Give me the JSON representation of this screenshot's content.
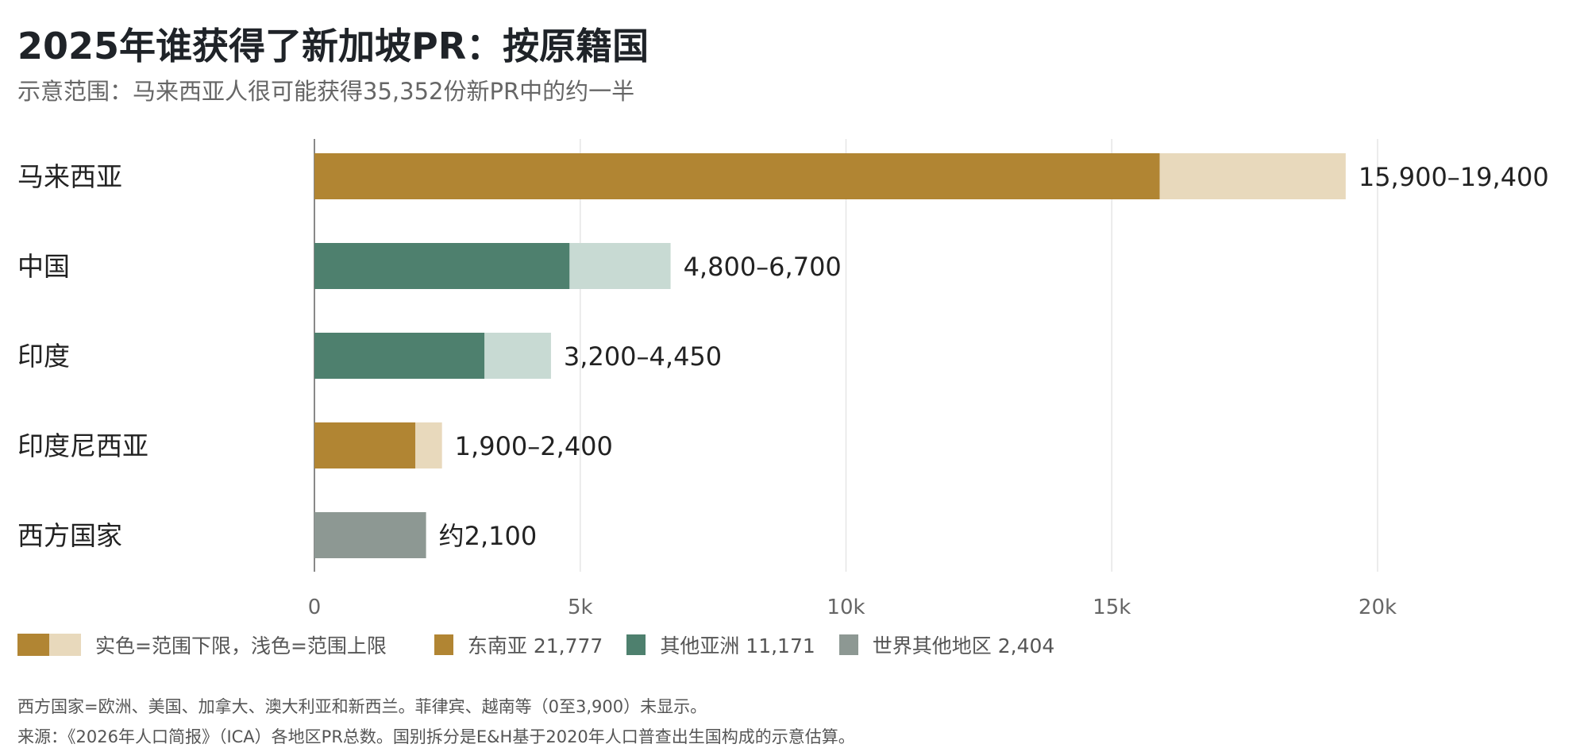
{
  "title": "2025年谁获得了新加坡PR：按原籍国",
  "subtitle": "示意范围：马来西亚人很可能获得35,352份新PR中的约一半",
  "colors": {
    "sea_dark": "#b18533",
    "sea_light": "#e8d9bc",
    "asia_dark": "#4e806e",
    "asia_light": "#c8dad3",
    "world": "#8d9893",
    "grid": "#e6e6e6",
    "axis": "#888888"
  },
  "chart_data": {
    "type": "bar",
    "orientation": "horizontal",
    "stacked_range": true,
    "categories": [
      "马来西亚",
      "中国",
      "印度",
      "印度尼西亚",
      "西方国家"
    ],
    "low": [
      15900,
      4800,
      3200,
      1900,
      2100
    ],
    "high": [
      19400,
      6700,
      4450,
      2400,
      2100
    ],
    "groups": [
      "sea",
      "asia",
      "asia",
      "sea",
      "world"
    ],
    "value_labels": [
      "15,900–19,400",
      "4,800–6,700",
      "3,200–4,450",
      "1,900–2,400",
      "约2,100"
    ],
    "xlim": [
      0,
      23000
    ],
    "xticks": [
      0,
      5000,
      10000,
      15000,
      20000
    ],
    "xtick_labels": [
      "0",
      "5k",
      "10k",
      "15k",
      "20k"
    ],
    "grid": "vertical",
    "legend_position": "bottom-left"
  },
  "legend": {
    "range_label": "实色=范围下限，浅色=范围上限",
    "sea_label": "东南亚 21,777",
    "asia_label": "其他亚洲 11,171",
    "world_label": "世界其他地区 2,404"
  },
  "notes": {
    "line1": "西方国家=欧洲、美国、加拿大、澳大利亚和新西兰。菲律宾、越南等（0至3,900）未显示。",
    "line2": "来源：《2026年人口简报》（ICA）各地区PR总数。国别拆分是E&H基于2020年人口普查出生国构成的示意估算。"
  }
}
